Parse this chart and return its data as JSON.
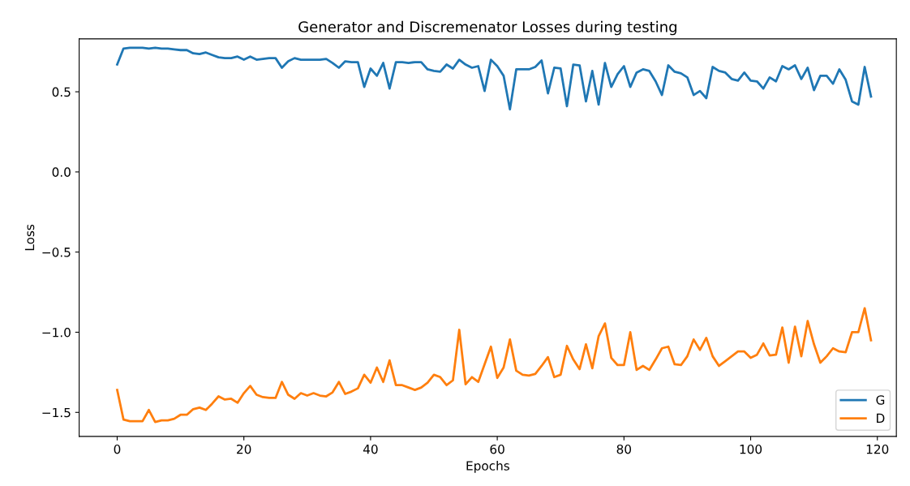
{
  "chart_data": {
    "type": "line",
    "title": "Generator and Discremenator Losses during testing",
    "xlabel": "Epochs",
    "ylabel": "Loss",
    "x": [
      0,
      1,
      2,
      3,
      4,
      5,
      6,
      7,
      8,
      9,
      10,
      11,
      12,
      13,
      14,
      15,
      16,
      17,
      18,
      19,
      20,
      21,
      22,
      23,
      24,
      25,
      26,
      27,
      28,
      29,
      30,
      31,
      32,
      33,
      34,
      35,
      36,
      37,
      38,
      39,
      40,
      41,
      42,
      43,
      44,
      45,
      46,
      47,
      48,
      49,
      50,
      51,
      52,
      53,
      54,
      55,
      56,
      57,
      58,
      59,
      60,
      61,
      62,
      63,
      64,
      65,
      66,
      67,
      68,
      69,
      70,
      71,
      72,
      73,
      74,
      75,
      76,
      77,
      78,
      79,
      80,
      81,
      82,
      83,
      84,
      85,
      86,
      87,
      88,
      89,
      90,
      91,
      92,
      93,
      94,
      95,
      96,
      97,
      98,
      99,
      100,
      101,
      102,
      103,
      104,
      105,
      106,
      107,
      108,
      109,
      110,
      111,
      112,
      113,
      114,
      115,
      116,
      117,
      118,
      119
    ],
    "series": [
      {
        "name": "G",
        "color": "#1f77b4",
        "values": [
          0.67,
          0.77,
          0.775,
          0.775,
          0.775,
          0.77,
          0.775,
          0.77,
          0.77,
          0.765,
          0.76,
          0.76,
          0.74,
          0.735,
          0.745,
          0.73,
          0.715,
          0.71,
          0.71,
          0.72,
          0.7,
          0.72,
          0.7,
          0.705,
          0.71,
          0.71,
          0.65,
          0.69,
          0.71,
          0.7,
          0.7,
          0.7,
          0.7,
          0.705,
          0.68,
          0.65,
          0.69,
          0.685,
          0.685,
          0.53,
          0.645,
          0.6,
          0.68,
          0.52,
          0.685,
          0.685,
          0.68,
          0.685,
          0.685,
          0.64,
          0.63,
          0.625,
          0.67,
          0.645,
          0.7,
          0.67,
          0.65,
          0.66,
          0.505,
          0.7,
          0.66,
          0.6,
          0.39,
          0.64,
          0.64,
          0.64,
          0.655,
          0.695,
          0.49,
          0.65,
          0.645,
          0.41,
          0.67,
          0.665,
          0.44,
          0.63,
          0.42,
          0.68,
          0.53,
          0.61,
          0.66,
          0.53,
          0.62,
          0.64,
          0.63,
          0.565,
          0.48,
          0.665,
          0.625,
          0.615,
          0.59,
          0.48,
          0.505,
          0.46,
          0.655,
          0.63,
          0.62,
          0.58,
          0.57,
          0.62,
          0.57,
          0.565,
          0.52,
          0.59,
          0.565,
          0.66,
          0.64,
          0.665,
          0.58,
          0.65,
          0.51,
          0.6,
          0.6,
          0.55,
          0.64,
          0.575,
          0.44,
          0.42,
          0.655,
          0.47
        ]
      },
      {
        "name": "D",
        "color": "#ff7f0e",
        "values": [
          -1.36,
          -1.545,
          -1.555,
          -1.555,
          -1.555,
          -1.485,
          -1.56,
          -1.55,
          -1.55,
          -1.54,
          -1.515,
          -1.515,
          -1.48,
          -1.47,
          -1.485,
          -1.445,
          -1.4,
          -1.42,
          -1.415,
          -1.44,
          -1.38,
          -1.335,
          -1.39,
          -1.405,
          -1.41,
          -1.41,
          -1.31,
          -1.39,
          -1.415,
          -1.38,
          -1.395,
          -1.38,
          -1.395,
          -1.4,
          -1.375,
          -1.31,
          -1.385,
          -1.37,
          -1.35,
          -1.265,
          -1.315,
          -1.22,
          -1.31,
          -1.175,
          -1.33,
          -1.33,
          -1.345,
          -1.36,
          -1.345,
          -1.315,
          -1.265,
          -1.28,
          -1.33,
          -1.3,
          -0.985,
          -1.325,
          -1.28,
          -1.31,
          -1.2,
          -1.09,
          -1.285,
          -1.22,
          -1.045,
          -1.24,
          -1.265,
          -1.27,
          -1.26,
          -1.21,
          -1.155,
          -1.28,
          -1.265,
          -1.085,
          -1.17,
          -1.23,
          -1.075,
          -1.225,
          -1.025,
          -0.945,
          -1.16,
          -1.205,
          -1.205,
          -1.0,
          -1.235,
          -1.21,
          -1.235,
          -1.17,
          -1.1,
          -1.09,
          -1.2,
          -1.205,
          -1.15,
          -1.045,
          -1.11,
          -1.035,
          -1.15,
          -1.21,
          -1.18,
          -1.15,
          -1.12,
          -1.12,
          -1.16,
          -1.14,
          -1.07,
          -1.145,
          -1.14,
          -0.97,
          -1.19,
          -0.965,
          -1.15,
          -0.93,
          -1.075,
          -1.19,
          -1.15,
          -1.1,
          -1.12,
          -1.125,
          -1.0,
          -1.0,
          -0.85,
          -1.05
        ]
      }
    ],
    "xlim": [
      -6,
      123
    ],
    "ylim": [
      -1.65,
      0.83
    ],
    "xticks": [
      0,
      20,
      40,
      60,
      80,
      100,
      120
    ],
    "yticks": [
      {
        "value": -1.5,
        "label": "−1.5"
      },
      {
        "value": -1.0,
        "label": "−1.0"
      },
      {
        "value": -0.5,
        "label": "−0.5"
      },
      {
        "value": 0.0,
        "label": "0.0"
      },
      {
        "value": 0.5,
        "label": "0.5"
      }
    ],
    "legend": "lower right",
    "grid": false
  }
}
